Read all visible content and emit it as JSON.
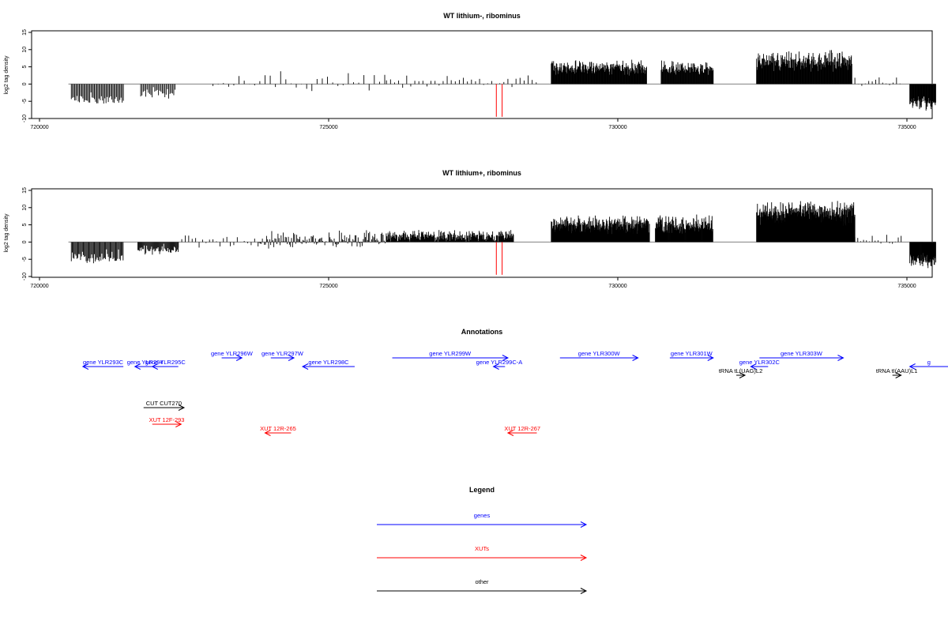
{
  "colors": {
    "genes": "#0000ff",
    "xuts": "#ff0000",
    "other": "#000000",
    "signal": "#000000",
    "marker": "#ff0000"
  },
  "chart_data": [
    {
      "type": "bar",
      "title": "WT lithium-, ribominus",
      "ylabel": "log2 tag density",
      "xlim": [
        720000,
        736000
      ],
      "ylim": [
        -10,
        15
      ],
      "xticks": [
        720000,
        725000,
        730000,
        735000
      ],
      "xtick_labels": [
        "720000",
        "725000",
        "730000",
        "735000"
      ],
      "yticks": [
        -10,
        -5,
        0,
        5,
        10,
        15
      ],
      "ytick_labels": [
        "-10",
        "-5",
        "0",
        "5",
        "10",
        "15"
      ],
      "baseline": [
        720500,
        735500
      ],
      "markers": [
        727900,
        728000
      ],
      "regions": [
        {
          "x0": 720550,
          "x1": 721450,
          "mean": -4.5,
          "amp": 2.5,
          "step": 20,
          "seed": 1
        },
        {
          "x0": 721750,
          "x1": 722350,
          "mean": -2.5,
          "amp": 1.8,
          "step": 22,
          "seed": 2
        },
        {
          "x0": 723000,
          "x1": 726000,
          "mean": 0.3,
          "amp": 3.5,
          "step": 90,
          "seed": 3
        },
        {
          "x0": 726000,
          "x1": 728600,
          "mean": 0.8,
          "amp": 2.5,
          "step": 70,
          "seed": 4
        },
        {
          "x0": 728850,
          "x1": 730500,
          "mean": 4.8,
          "amp": 2.5,
          "step": 8,
          "seed": 5
        },
        {
          "x0": 730750,
          "x1": 731650,
          "mean": 4.6,
          "amp": 2.5,
          "step": 9,
          "seed": 6
        },
        {
          "x0": 732400,
          "x1": 734050,
          "mean": 6.8,
          "amp": 3.5,
          "step": 8,
          "seed": 7
        },
        {
          "x0": 734100,
          "x1": 734900,
          "mean": 0.8,
          "amp": 2.0,
          "step": 60,
          "seed": 8
        },
        {
          "x0": 735050,
          "x1": 735500,
          "mean": -5.5,
          "amp": 2.5,
          "step": 8,
          "seed": 9
        }
      ]
    },
    {
      "type": "bar",
      "title": "WT lithium+, ribominus",
      "ylabel": "log2 tag density",
      "xlim": [
        720000,
        736000
      ],
      "ylim": [
        -10,
        15
      ],
      "xticks": [
        720000,
        725000,
        730000,
        735000
      ],
      "xtick_labels": [
        "720000",
        "725000",
        "730000",
        "735000"
      ],
      "yticks": [
        -10,
        -5,
        0,
        5,
        10,
        15
      ],
      "ytick_labels": [
        "-10",
        "-5",
        "0",
        "5",
        "10",
        "15"
      ],
      "baseline": [
        720500,
        735500
      ],
      "markers": [
        727900,
        728000
      ],
      "regions": [
        {
          "x0": 720550,
          "x1": 721450,
          "mean": -4.5,
          "amp": 2.5,
          "step": 16,
          "seed": 11
        },
        {
          "x0": 721700,
          "x1": 722400,
          "mean": -2.2,
          "amp": 2.0,
          "step": 14,
          "seed": 12
        },
        {
          "x0": 722400,
          "x1": 723800,
          "mean": 0.2,
          "amp": 2.5,
          "step": 60,
          "seed": 13
        },
        {
          "x0": 723800,
          "x1": 726000,
          "mean": 0.8,
          "amp": 3.0,
          "step": 18,
          "seed": 14
        },
        {
          "x0": 726000,
          "x1": 728200,
          "mean": 1.8,
          "amp": 2.0,
          "step": 9,
          "seed": 15
        },
        {
          "x0": 728850,
          "x1": 730550,
          "mean": 5.0,
          "amp": 3.0,
          "step": 6,
          "seed": 16
        },
        {
          "x0": 730650,
          "x1": 731650,
          "mean": 5.0,
          "amp": 3.0,
          "step": 7,
          "seed": 17
        },
        {
          "x0": 732400,
          "x1": 734100,
          "mean": 8.5,
          "amp": 4.0,
          "step": 5,
          "seed": 18
        },
        {
          "x0": 734100,
          "x1": 734900,
          "mean": 0.5,
          "amp": 2.5,
          "step": 50,
          "seed": 19
        },
        {
          "x0": 735050,
          "x1": 735500,
          "mean": -5.5,
          "amp": 2.5,
          "step": 7,
          "seed": 20
        }
      ]
    }
  ],
  "annotations": {
    "title": "Annotations",
    "features": [
      {
        "label": "gene YLR293C",
        "kind": "genes",
        "x0": 720750,
        "x1": 721450,
        "dir": "left",
        "row": 1
      },
      {
        "label": "gene YLR294",
        "kind": "genes",
        "x0": 721650,
        "x1": 722000,
        "dir": "left",
        "row": 1
      },
      {
        "label": "gene YLR295C",
        "kind": "genes",
        "x0": 721950,
        "x1": 722400,
        "dir": "left",
        "row": 1
      },
      {
        "label": "gene YLR296W",
        "kind": "genes",
        "x0": 723150,
        "x1": 723500,
        "dir": "right",
        "row": 0
      },
      {
        "label": "gene YLR297W",
        "kind": "genes",
        "x0": 724000,
        "x1": 724400,
        "dir": "right",
        "row": 0
      },
      {
        "label": "gene YLR298C",
        "kind": "genes",
        "x0": 724550,
        "x1": 725450,
        "dir": "left",
        "row": 1
      },
      {
        "label": "gene YLR299W",
        "kind": "genes",
        "x0": 726100,
        "x1": 728100,
        "dir": "right",
        "row": 0
      },
      {
        "label": "gene YLR299C-A",
        "kind": "genes",
        "x0": 727850,
        "x1": 728050,
        "dir": "left",
        "row": 1
      },
      {
        "label": "gene YLR300W",
        "kind": "genes",
        "x0": 729000,
        "x1": 730350,
        "dir": "right",
        "row": 0
      },
      {
        "label": "gene YLR301W",
        "kind": "genes",
        "x0": 730900,
        "x1": 731650,
        "dir": "right",
        "row": 0
      },
      {
        "label": "gene YLR302C",
        "kind": "genes",
        "x0": 732300,
        "x1": 732600,
        "dir": "left",
        "row": 1
      },
      {
        "label": "gene YLR303W",
        "kind": "genes",
        "x0": 732450,
        "x1": 733900,
        "dir": "right",
        "row": 0
      },
      {
        "label": "tRNA tL(UAG)L2",
        "kind": "other",
        "x0": 732050,
        "x1": 732200,
        "dir": "right",
        "row": 2
      },
      {
        "label": "tRNA tI(AAU)L1",
        "kind": "other",
        "x0": 734750,
        "x1": 734900,
        "dir": "right",
        "row": 2
      },
      {
        "label": "g",
        "kind": "genes",
        "x0": 735050,
        "x1": 736000,
        "dir": "left",
        "row": 1
      },
      {
        "label": "CUT CUT270",
        "kind": "other",
        "x0": 721800,
        "x1": 722500,
        "dir": "right",
        "row": 3
      },
      {
        "label": "XUT 12F-293",
        "kind": "xuts",
        "x0": 721950,
        "x1": 722450,
        "dir": "right",
        "row": 4
      },
      {
        "label": "XUT 12R-265",
        "kind": "xuts",
        "x0": 723900,
        "x1": 724350,
        "dir": "left",
        "row": 5
      },
      {
        "label": "XUT 12R-267",
        "kind": "xuts",
        "x0": 728100,
        "x1": 728600,
        "dir": "left",
        "row": 5
      }
    ]
  },
  "legend": {
    "title": "Legend",
    "items": [
      {
        "label": "genes",
        "kind": "genes"
      },
      {
        "label": "XUTs",
        "kind": "xuts"
      },
      {
        "label": "other",
        "kind": "other"
      }
    ]
  }
}
